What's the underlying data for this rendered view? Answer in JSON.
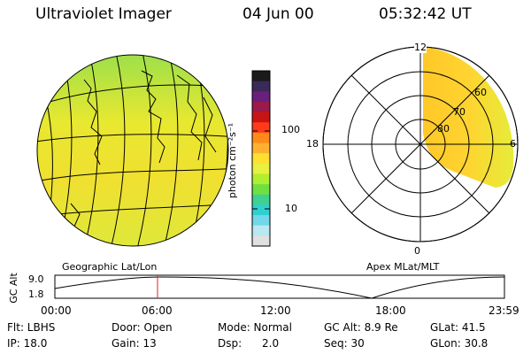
{
  "header": {
    "instrument": "Ultraviolet Imager",
    "date": "04 Jun 00",
    "time": "05:32:42 UT"
  },
  "panels": {
    "left_label": "Geographic Lat/Lon",
    "right_label": "Apex MLat/MLT"
  },
  "colorbar": {
    "unit_label": "photon cm⁻²s⁻¹",
    "ticks": [
      "100",
      "10"
    ],
    "colors": [
      "#1a1a1a",
      "#3a2a5a",
      "#6a1f7a",
      "#9a1a4a",
      "#c81414",
      "#ff3a1a",
      "#ff8a1a",
      "#ffb030",
      "#ffe030",
      "#e8f040",
      "#b0ee30",
      "#70e040",
      "#40d090",
      "#30d0d0",
      "#70d8e8",
      "#b8e8f0",
      "#e0e0e0"
    ]
  },
  "polar": {
    "mlt_labels": {
      "top": "12",
      "left": "18",
      "right": "6",
      "bottom": "0"
    },
    "lat_labels": [
      "80",
      "70",
      "60"
    ]
  },
  "altitude_plot": {
    "ylabel": "GC Alt",
    "y_ticks": [
      "9.0",
      "1.8"
    ],
    "x_ticks": [
      "00:00",
      "06:00",
      "12:00",
      "18:00",
      "23:59"
    ]
  },
  "footer": {
    "row1": [
      "Flt: LBHS",
      "Door: Open",
      "Mode: Normal",
      "GC Alt: 8.9 Re",
      "GLat: 41.5"
    ],
    "row2": [
      "IP: 18.0",
      "Gain: 13",
      "Dsp:      2.0",
      "Seq: 30",
      "GLon: 30.8"
    ]
  }
}
